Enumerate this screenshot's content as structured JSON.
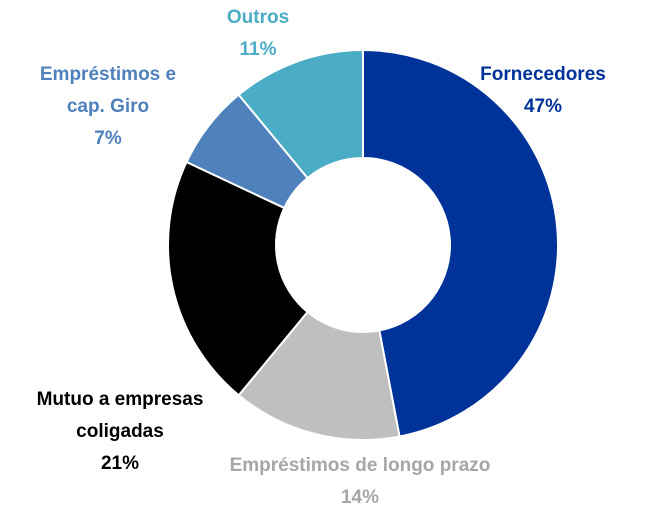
{
  "chart_data": {
    "type": "donut",
    "categories": [
      "Fornecedores",
      "Empréstimos de longo prazo",
      "Mutuo a empresas coligadas",
      "Empréstimos e cap. Giro",
      "Outros"
    ],
    "values": [
      47,
      14,
      21,
      7,
      11
    ],
    "value_labels": [
      "47%",
      "14%",
      "21%",
      "7%",
      "11%"
    ],
    "colors": [
      "#003399",
      "#bfbfbf",
      "#000000",
      "#4f81bd",
      "#4bacc6"
    ]
  }
}
